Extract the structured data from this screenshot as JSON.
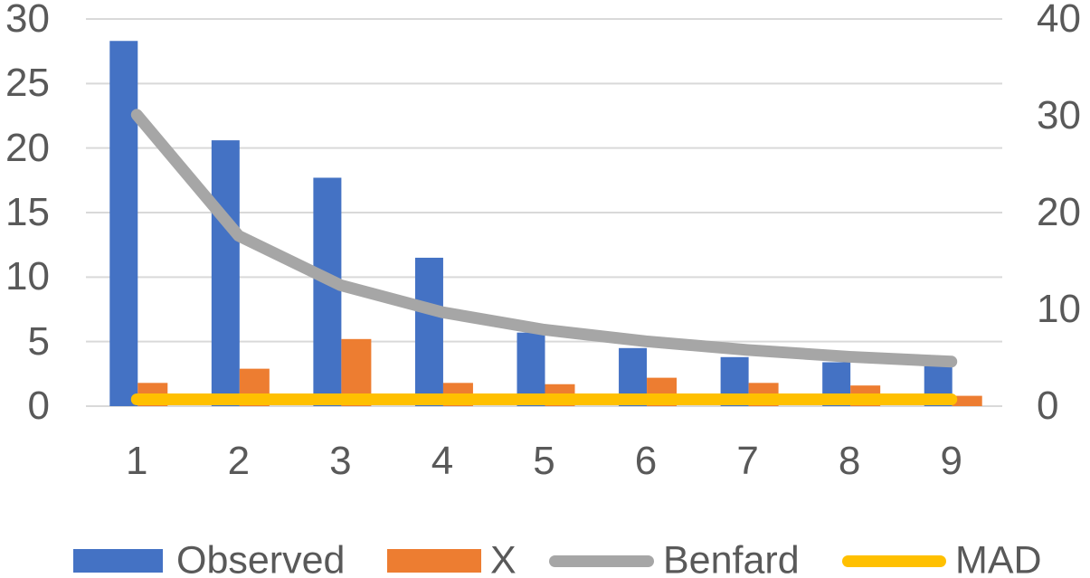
{
  "chart_data": {
    "type": "combo",
    "title": "",
    "categories": [
      "1",
      "2",
      "3",
      "4",
      "5",
      "6",
      "7",
      "8",
      "9"
    ],
    "series": [
      {
        "name": "Observed",
        "type": "bar",
        "axis": "left",
        "color": "#4472C4",
        "values": [
          28.3,
          20.6,
          17.7,
          11.5,
          5.7,
          4.5,
          3.8,
          3.4,
          3.1
        ]
      },
      {
        "name": "X",
        "type": "bar",
        "axis": "left",
        "color": "#ED7D31",
        "values": [
          1.8,
          2.9,
          5.2,
          1.8,
          1.7,
          2.2,
          1.8,
          1.6,
          0.8
        ]
      },
      {
        "name": "Benfard",
        "type": "line",
        "axis": "right",
        "color": "#A6A6A6",
        "values": [
          30.1,
          17.6,
          12.5,
          9.7,
          7.9,
          6.7,
          5.8,
          5.1,
          4.6
        ]
      },
      {
        "name": "MAD",
        "type": "line",
        "axis": "right",
        "color": "#FFC000",
        "values": [
          0.7,
          0.7,
          0.7,
          0.7,
          0.7,
          0.7,
          0.7,
          0.7,
          0.7
        ]
      }
    ],
    "left_axis": {
      "range": [
        0,
        30
      ],
      "ticks": [
        0,
        5,
        10,
        15,
        20,
        25,
        30
      ]
    },
    "right_axis": {
      "range": [
        0,
        40
      ],
      "ticks": [
        0,
        10,
        20,
        30,
        40
      ]
    },
    "grid": true,
    "legend_position": "bottom",
    "colors": {
      "axis_text": "#595959",
      "gridline": "#D9D9D9",
      "background": "#FFFFFF"
    }
  }
}
